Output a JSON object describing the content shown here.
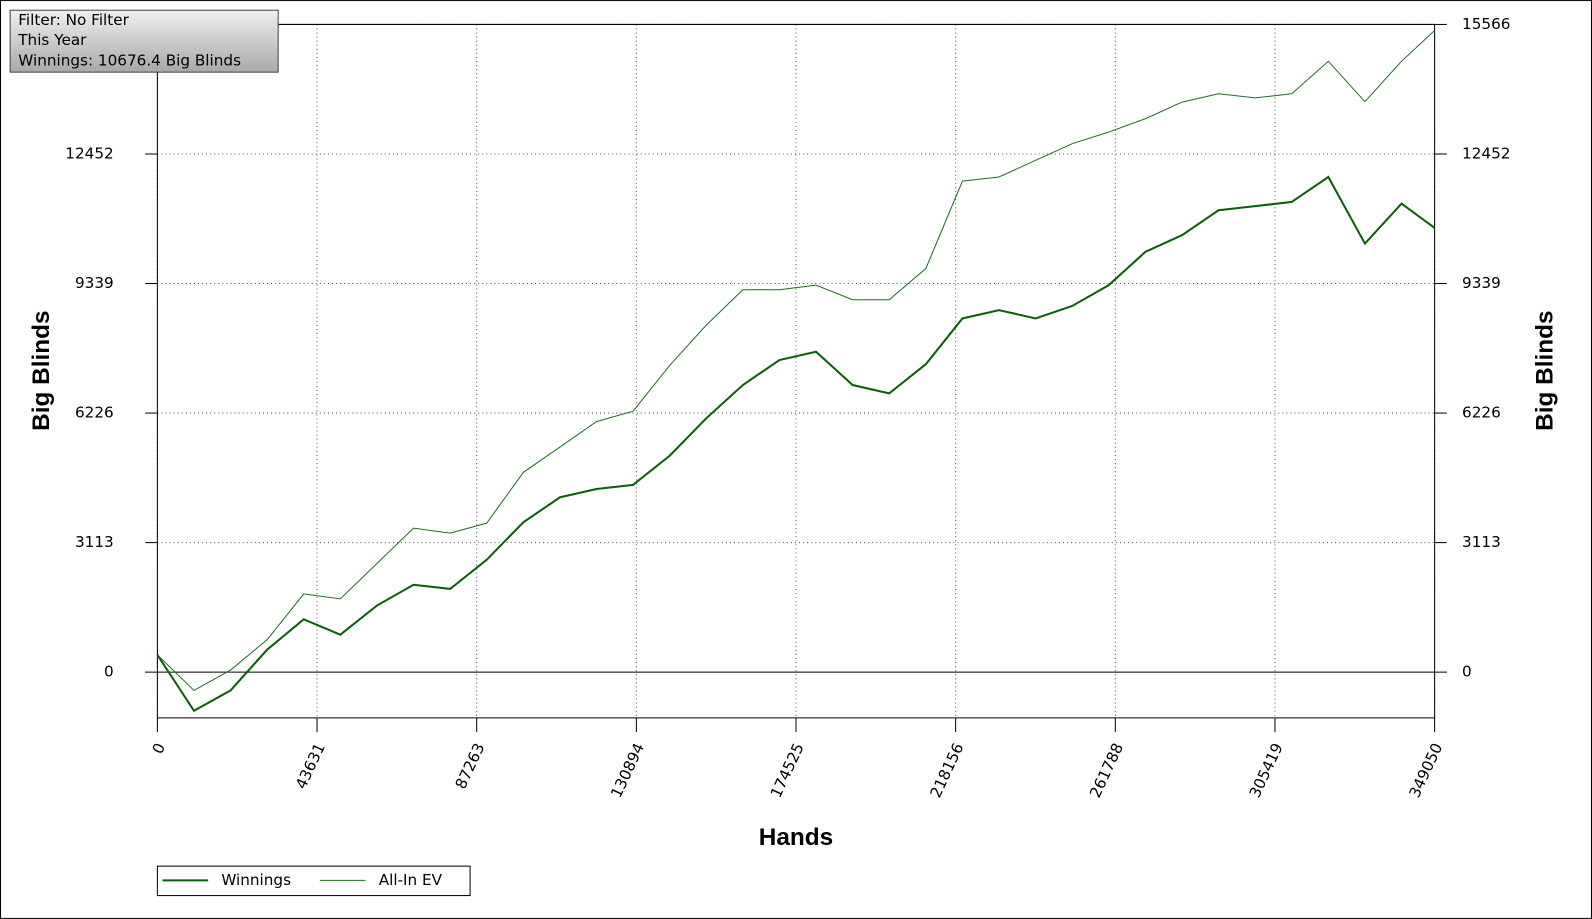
{
  "chart_data": {
    "type": "line",
    "annotations": [
      "Filter: No Filter",
      "This Year",
      "Winnings: 10676.4 Big Blinds"
    ],
    "xlabel": "Hands",
    "ylabel": "Big Blinds",
    "x": [
      0,
      10000,
      20000,
      30000,
      40000,
      50000,
      60000,
      70000,
      80000,
      90000,
      100000,
      110000,
      120000,
      130000,
      140000,
      150000,
      160000,
      170000,
      180000,
      190000,
      200000,
      210000,
      220000,
      230000,
      240000,
      250000,
      260000,
      270000,
      280000,
      290000,
      300000,
      310000,
      320000,
      330000,
      340000,
      349050
    ],
    "series": [
      {
        "name": "Winnings",
        "color": "#0b5e0b",
        "values": [
          415,
          -930,
          -440,
          540,
          1270,
          900,
          1600,
          2100,
          2000,
          2700,
          3600,
          4200,
          4400,
          4500,
          5200,
          6100,
          6900,
          7500,
          7700,
          6900,
          6700,
          7400,
          8500,
          8700,
          8500,
          8800,
          9300,
          10100,
          10500,
          11100,
          11200,
          11300,
          11900,
          10300,
          11260,
          10676
        ]
      },
      {
        "name": "All-In EV",
        "color": "#1f6e1f",
        "values": [
          415,
          -440,
          50,
          780,
          1880,
          1760,
          2610,
          3460,
          3340,
          3580,
          4800,
          5410,
          6020,
          6270,
          7370,
          8340,
          9190,
          9190,
          9300,
          8950,
          8950,
          9700,
          11800,
          11900,
          12300,
          12700,
          12980,
          13300,
          13700,
          13900,
          13800,
          13900,
          14680,
          13710,
          14680,
          15420
        ]
      }
    ],
    "xlim": [
      0,
      349050
    ],
    "xticks": [
      0,
      43631,
      87263,
      130894,
      174525,
      218156,
      261788,
      305419,
      349050
    ],
    "ylim": [
      -1100,
      15566
    ],
    "yticks": [
      0,
      3113,
      6226,
      9339,
      12452,
      15566
    ],
    "grid": true,
    "legend": "bottom-left"
  }
}
